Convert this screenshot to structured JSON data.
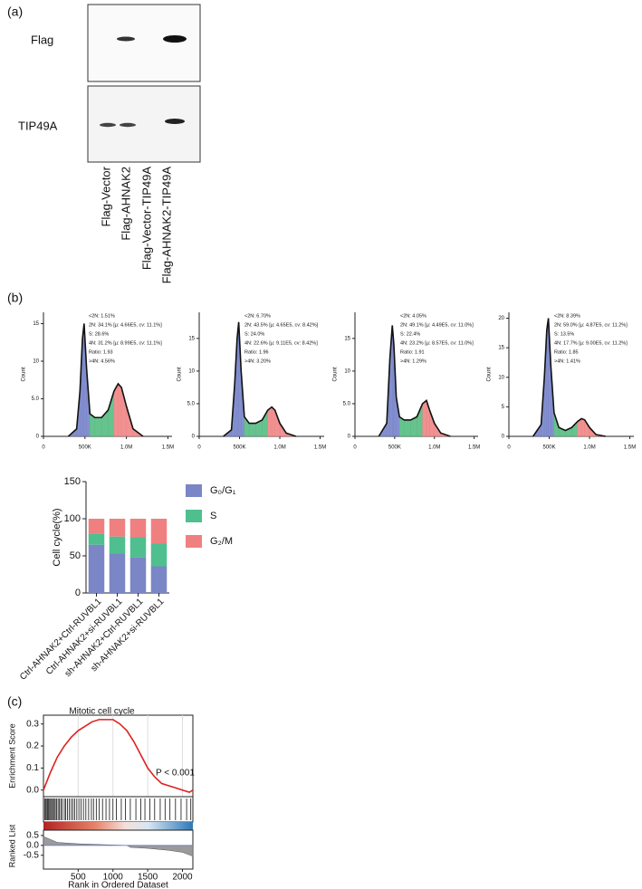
{
  "panel_labels": [
    "(a)",
    "(b)",
    "(c)"
  ],
  "blot": {
    "rows": [
      "Flag",
      "TIP49A"
    ],
    "lanes": [
      "Flag-Vector",
      "Flag-AHNAK2",
      "Flag-Vector-TIP49A",
      "Flag-AHNAK2-TIP49A"
    ]
  },
  "chart_data": [
    {
      "type": "histogram",
      "y_label": "Count",
      "annotations": [
        "<2N: 1.51%",
        "2N: 34.1%  [µ: 4.66E5, cv: 11.1%]",
        "S: 28.6%",
        "4N: 31.2%  [µ: 8.99E5, cv: 11.1%]",
        "Ratio: 1.93",
        ">4N: 4.56%"
      ],
      "x": [
        300000,
        400000,
        440000,
        470000,
        490000,
        520000,
        560000,
        620000,
        700000,
        780000,
        850000,
        900000,
        940000,
        1000000,
        1080000,
        1200000
      ],
      "values": [
        0,
        1,
        6,
        13,
        15,
        9,
        3,
        2.5,
        2.5,
        3.5,
        6,
        7,
        6.5,
        4,
        1,
        0
      ],
      "colors": [
        "#6f7cc6",
        "#4cb87a",
        "#ee7e7e"
      ],
      "xlim": [
        0,
        1550000
      ],
      "xticks": [
        0,
        {
          "value": 500000,
          "label": "500K"
        },
        {
          "value": 1000000,
          "label": "1.0M"
        },
        {
          "value": 1500000,
          "label": "1.5M"
        }
      ],
      "ylim": [
        0,
        16.5
      ],
      "yticks": [
        0,
        {
          "value": 5,
          "label": "5.0"
        },
        10,
        15
      ]
    },
    {
      "type": "histogram",
      "y_label": "Count",
      "annotations": [
        "<2N: 6.70%",
        "2N: 43.5%  [µ: 4.65E5, cv: 8.42%]",
        "S: 24.0%",
        "4N: 22.6%  [µ: 9.11E5, cv: 8.42%]",
        "Ratio: 1.96",
        ">4N: 3.20%"
      ],
      "x": [
        300000,
        400000,
        440000,
        470000,
        490000,
        520000,
        560000,
        620000,
        700000,
        780000,
        850000,
        900000,
        940000,
        1000000,
        1080000,
        1200000
      ],
      "values": [
        0,
        1,
        8,
        15,
        17.5,
        10,
        3,
        2,
        2,
        2.5,
        4,
        4.5,
        4,
        2,
        0.5,
        0
      ],
      "colors": [
        "#6f7cc6",
        "#4cb87a",
        "#ee7e7e"
      ],
      "xlim": [
        0,
        1550000
      ],
      "xticks": [
        0,
        {
          "value": 500000,
          "label": "500K"
        },
        {
          "value": 1000000,
          "label": "1.0M"
        },
        {
          "value": 1500000,
          "label": "1.5M"
        }
      ],
      "ylim": [
        0,
        19
      ],
      "yticks": [
        0,
        {
          "value": 5,
          "label": "5.0"
        },
        10,
        15
      ]
    },
    {
      "type": "histogram",
      "y_label": "Count",
      "annotations": [
        "<2N: 4.05%",
        "2N: 49.1%  [µ: 4.49E5, cv: 11.0%]",
        "S: 22.4%",
        "4N: 23.2%  [µ: 8.57E5, cv: 11.0%]",
        "Ratio: 1.91",
        ">4N: 1.29%"
      ],
      "x": [
        300000,
        400000,
        440000,
        470000,
        490000,
        520000,
        560000,
        620000,
        700000,
        780000,
        850000,
        900000,
        940000,
        1000000,
        1080000,
        1200000
      ],
      "values": [
        0,
        2,
        12,
        17,
        14,
        6,
        3,
        2.5,
        2.5,
        3,
        5,
        5.5,
        4,
        2,
        0.5,
        0
      ],
      "colors": [
        "#6f7cc6",
        "#4cb87a",
        "#ee7e7e"
      ],
      "xlim": [
        0,
        1550000
      ],
      "xticks": [
        0,
        {
          "value": 500000,
          "label": "500K"
        },
        {
          "value": 1000000,
          "label": "1.0M"
        },
        {
          "value": 1500000,
          "label": "1.5M"
        }
      ],
      "ylim": [
        0,
        19
      ],
      "yticks": [
        0,
        {
          "value": 5,
          "label": "5.0"
        },
        10,
        15
      ]
    },
    {
      "type": "histogram",
      "y_label": "Count",
      "annotations": [
        "<2N: 8.39%",
        "2N: 59.0%  [µ: 4.87E5, cv: 11.2%]",
        "S: 13.5%",
        "4N: 17.7%  [µ: 9.00E5, cv: 11.2%]",
        "Ratio: 1.85",
        ">4N: 1.41%"
      ],
      "x": [
        300000,
        400000,
        440000,
        470000,
        490000,
        520000,
        560000,
        620000,
        700000,
        780000,
        850000,
        900000,
        940000,
        1000000,
        1080000,
        1200000
      ],
      "values": [
        0,
        2,
        10,
        18,
        20,
        12,
        4,
        1.5,
        1,
        1.5,
        2.5,
        3,
        2.8,
        1.5,
        0.3,
        0
      ],
      "colors": [
        "#6f7cc6",
        "#4cb87a",
        "#ee7e7e"
      ],
      "xlim": [
        0,
        1550000
      ],
      "xticks": [
        0,
        {
          "value": 500000,
          "label": "500K"
        },
        {
          "value": 1000000,
          "label": "1.0M"
        },
        {
          "value": 1500000,
          "label": "1.5M"
        }
      ],
      "ylim": [
        0,
        21
      ],
      "yticks": [
        0,
        5,
        10,
        15,
        20
      ]
    },
    {
      "type": "stacked_bar",
      "y_label": "Cell cycle(%)",
      "categories": [
        "Ctrl-AHNAK2+Ctrl-RUVBL1",
        "Ctrl-AHNAK2+si-RUVBL1",
        "sh-AHNAK2+Ctrl-RUVBL1",
        "sh-AHNAK2+si-RUVBL1"
      ],
      "series": [
        {
          "name": "G₀/G₁",
          "color": "#7b86c6",
          "values": [
            65,
            53,
            48,
            36
          ]
        },
        {
          "name": "S",
          "color": "#4fbf8f",
          "values": [
            15,
            23,
            27,
            31
          ]
        },
        {
          "name": "G₂/M",
          "color": "#f08080",
          "values": [
            20,
            24,
            25,
            33
          ]
        }
      ],
      "ylim": [
        0,
        150
      ],
      "yticks": [
        0,
        50,
        100,
        150
      ],
      "legend": "right"
    },
    {
      "type": "gsea",
      "title": "Mitotic cell cycle",
      "annotation": "P < 0.001",
      "y_label": "Enrichment Score",
      "x_label": "Rank in Ordered Dataset",
      "x": [
        0,
        100,
        200,
        300,
        400,
        500,
        600,
        700,
        800,
        900,
        1000,
        1100,
        1200,
        1300,
        1400,
        1500,
        1600,
        1700,
        1800,
        1900,
        2000,
        2100,
        2150
      ],
      "values": [
        0,
        0.08,
        0.15,
        0.2,
        0.24,
        0.27,
        0.29,
        0.31,
        0.32,
        0.32,
        0.32,
        0.3,
        0.27,
        0.22,
        0.16,
        0.1,
        0.06,
        0.03,
        0.02,
        0.01,
        0,
        -0.01,
        0
      ],
      "color": "#e02020",
      "hits": [
        20,
        35,
        50,
        62,
        75,
        90,
        105,
        120,
        140,
        155,
        170,
        190,
        210,
        230,
        250,
        270,
        300,
        320,
        345,
        370,
        400,
        425,
        450,
        480,
        510,
        540,
        575,
        610,
        650,
        690,
        720,
        760,
        800,
        850,
        900,
        950,
        1000,
        1050,
        1120,
        1180,
        1250,
        1330,
        1400,
        1460,
        1530,
        1600,
        1680,
        1750,
        1820,
        1900,
        1980,
        2060,
        2120
      ],
      "xlim": [
        0,
        2150
      ],
      "xticks": [
        500,
        1000,
        1500,
        2000
      ],
      "ylim": [
        -0.03,
        0.34
      ],
      "yticks": [
        {
          "value": 0,
          "label": "0.0"
        },
        0.1,
        0.2,
        0.3
      ],
      "ranked_list": {
        "y_label": "Ranked List",
        "x": [
          0,
          200,
          500,
          1000,
          1200,
          1250,
          1500,
          1800,
          2000,
          2150
        ],
        "values": [
          0.45,
          0.15,
          0.08,
          0.02,
          0,
          -0.1,
          -0.15,
          -0.25,
          -0.35,
          -0.55
        ],
        "color": "#9a9a9a",
        "ylim": [
          -1.2,
          0.77
        ],
        "yticks": [
          0.5,
          {
            "value": 0,
            "label": "0.0"
          },
          -0.5
        ]
      }
    }
  ]
}
